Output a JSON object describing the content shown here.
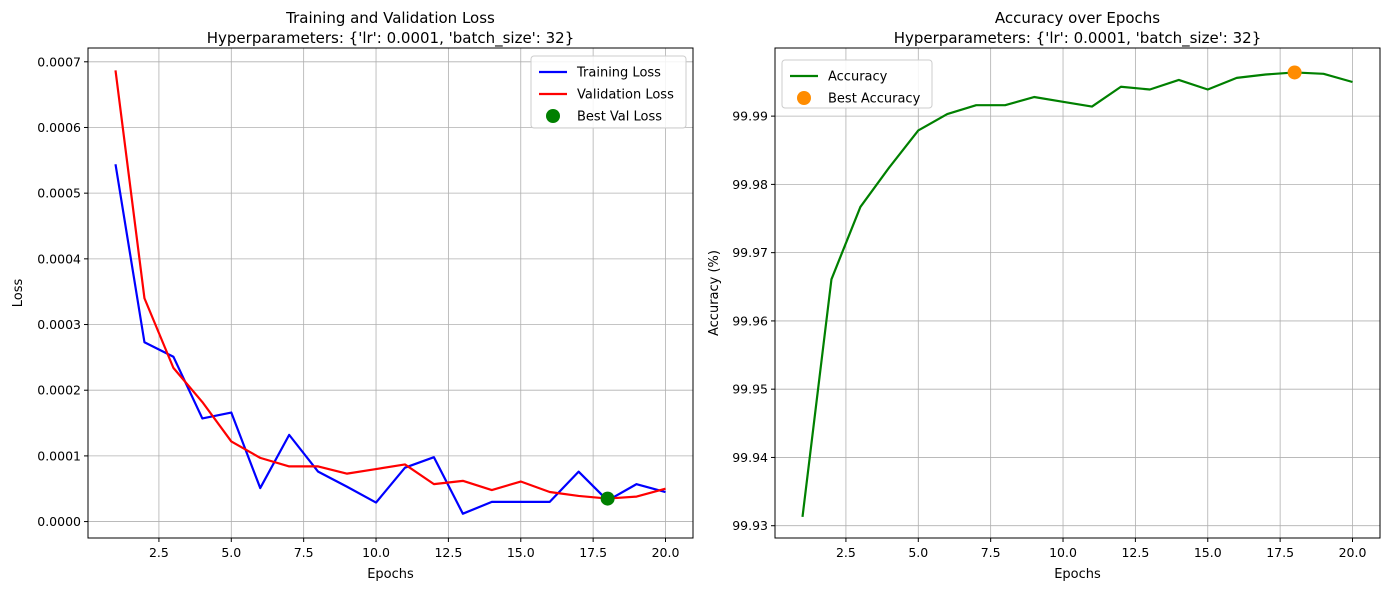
{
  "chart_data": [
    {
      "type": "line",
      "title": "Training and Validation Loss",
      "subtitle": "Hyperparameters: {'lr': 0.0001, 'batch_size': 32}",
      "xlabel": "Epochs",
      "ylabel": "Loss",
      "xlim": [
        0.05,
        20.95
      ],
      "ylim": [
        -2.5e-05,
        0.000721
      ],
      "x_ticks": [
        2.5,
        5.0,
        7.5,
        10.0,
        12.5,
        15.0,
        17.5,
        20.0
      ],
      "x_tick_labels": [
        "2.5",
        "5.0",
        "7.5",
        "10.0",
        "12.5",
        "15.0",
        "17.5",
        "20.0"
      ],
      "y_ticks": [
        0,
        0.0001,
        0.0002,
        0.0003,
        0.0004,
        0.0005,
        0.0006,
        0.0007
      ],
      "y_tick_labels": [
        "0.0000",
        "0.0001",
        "0.0002",
        "0.0003",
        "0.0004",
        "0.0005",
        "0.0006",
        "0.0007"
      ],
      "grid": true,
      "legend_position": "top-right",
      "x": [
        1,
        2,
        3,
        4,
        5,
        6,
        7,
        8,
        9,
        10,
        11,
        12,
        13,
        14,
        15,
        16,
        17,
        18,
        19,
        20
      ],
      "series": [
        {
          "name": "Training Loss",
          "kind": "line",
          "color": "#0000ff",
          "values": [
            0.000544,
            0.000273,
            0.000251,
            0.000157,
            0.000166,
            5.1e-05,
            0.000132,
            7.6e-05,
            5.3e-05,
            2.9e-05,
            8.2e-05,
            9.8e-05,
            1.2e-05,
            3e-05,
            3e-05,
            3e-05,
            7.6e-05,
            3.2e-05,
            5.7e-05,
            4.5e-05
          ]
        },
        {
          "name": "Validation Loss",
          "kind": "line",
          "color": "#ff0000",
          "values": [
            0.000687,
            0.00034,
            0.000234,
            0.000182,
            0.000122,
            9.7e-05,
            8.4e-05,
            8.4e-05,
            7.3e-05,
            8e-05,
            8.7e-05,
            5.7e-05,
            6.2e-05,
            4.8e-05,
            6.1e-05,
            4.5e-05,
            3.9e-05,
            3.5e-05,
            3.8e-05,
            5e-05
          ]
        },
        {
          "name": "Best Val Loss",
          "kind": "marker",
          "color": "#008000",
          "x": 18,
          "y": 3.5e-05
        }
      ]
    },
    {
      "type": "line",
      "title": "Accuracy over Epochs",
      "subtitle": "Hyperparameters: {'lr': 0.0001, 'batch_size': 32}",
      "xlabel": "Epochs",
      "ylabel": "Accuracy (%)",
      "xlim": [
        0.05,
        20.95
      ],
      "ylim": [
        99.9282,
        99.99998
      ],
      "x_ticks": [
        2.5,
        5.0,
        7.5,
        10.0,
        12.5,
        15.0,
        17.5,
        20.0
      ],
      "x_tick_labels": [
        "2.5",
        "5.0",
        "7.5",
        "10.0",
        "12.5",
        "15.0",
        "17.5",
        "20.0"
      ],
      "y_ticks": [
        99.93,
        99.94,
        99.95,
        99.96,
        99.97,
        99.98,
        99.99
      ],
      "y_tick_labels": [
        "99.93",
        "99.94",
        "99.95",
        "99.96",
        "99.97",
        "99.98",
        "99.99"
      ],
      "grid": true,
      "legend_position": "top-left",
      "x": [
        1,
        2,
        3,
        4,
        5,
        6,
        7,
        8,
        9,
        10,
        11,
        12,
        13,
        14,
        15,
        16,
        17,
        18,
        19,
        20
      ],
      "series": [
        {
          "name": "Accuracy",
          "kind": "line",
          "color": "#008000",
          "values": [
            99.9313,
            99.9661,
            99.9767,
            99.9825,
            99.9879,
            99.9903,
            99.9916,
            99.9916,
            99.9928,
            99.9921,
            99.9914,
            99.9943,
            99.9939,
            99.9953,
            99.9939,
            99.9956,
            99.9961,
            99.9964,
            99.9962,
            99.995
          ]
        },
        {
          "name": "Best Accuracy",
          "kind": "marker",
          "color": "#ff8c00",
          "x": 18,
          "y": 99.9964
        }
      ]
    }
  ]
}
